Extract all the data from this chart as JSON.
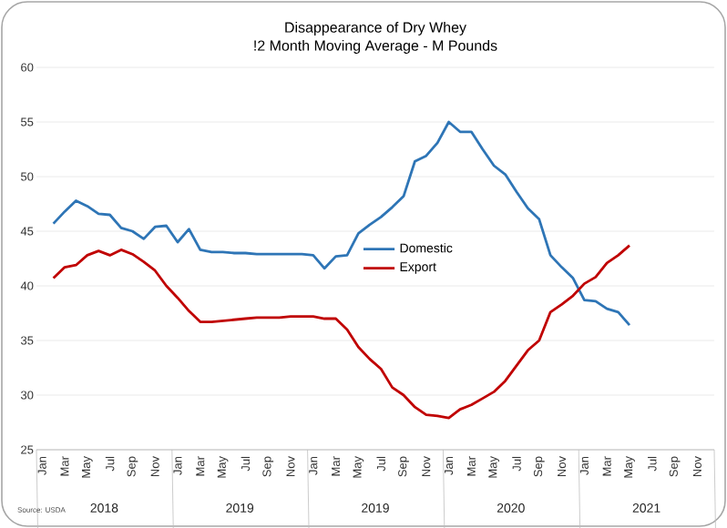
{
  "chart_data": {
    "type": "line",
    "title": "Disappearance of Dry Whey",
    "subtitle": "!2 Month Moving Average - M Pounds",
    "categories": [
      "Jan",
      null,
      "Mar",
      null,
      "May",
      null,
      "Jul",
      null,
      "Sep",
      null,
      "Nov",
      null,
      "Jan",
      null,
      "Mar",
      null,
      "May",
      null,
      "Jul",
      null,
      "Sep",
      null,
      "Nov",
      null,
      "Jan",
      null,
      "Mar",
      null,
      "May",
      null,
      "Jul",
      null,
      "Sep",
      null,
      "Nov",
      null,
      "Jan",
      null,
      "Mar",
      null,
      "May",
      null,
      "Jul",
      null,
      "Sep",
      null,
      "Nov",
      null,
      "Jan",
      null,
      "Mar",
      null,
      "May",
      null,
      "Jul",
      null,
      "Sep",
      null,
      "Nov",
      null
    ],
    "series": [
      {
        "name": "Domestic",
        "color": "#2e75b6",
        "values": [
          null,
          45.7,
          46.8,
          47.8,
          47.3,
          46.6,
          46.5,
          45.3,
          45.0,
          44.3,
          45.4,
          45.5,
          44.0,
          45.2,
          43.3,
          43.1,
          43.1,
          43.0,
          43.0,
          42.9,
          42.9,
          42.9,
          42.9,
          42.9,
          42.8,
          41.6,
          42.7,
          42.8,
          44.8,
          45.6,
          46.3,
          47.2,
          48.2,
          51.4,
          51.9,
          53.1,
          55.0,
          54.1,
          54.1,
          52.5,
          51.0,
          50.2,
          48.6,
          47.1,
          46.1,
          42.8,
          41.7,
          40.7,
          38.7,
          38.6,
          37.9,
          37.6,
          36.4,
          null,
          null,
          null,
          null,
          null,
          null,
          null
        ]
      },
      {
        "name": "Export",
        "color": "#c00000",
        "values": [
          null,
          40.7,
          41.7,
          41.9,
          42.8,
          43.2,
          42.8,
          43.3,
          42.9,
          42.2,
          41.4,
          40.0,
          38.9,
          37.7,
          36.7,
          36.7,
          36.8,
          36.9,
          37.0,
          37.1,
          37.1,
          37.1,
          37.2,
          37.2,
          37.2,
          37.0,
          37.0,
          36.0,
          34.4,
          33.3,
          32.4,
          30.7,
          30.0,
          28.9,
          28.2,
          28.1,
          27.9,
          28.7,
          29.1,
          29.7,
          30.3,
          31.3,
          32.7,
          34.1,
          35.0,
          37.6,
          38.3,
          39.1,
          40.2,
          40.8,
          42.1,
          42.8,
          43.7,
          null,
          null,
          null,
          null,
          null,
          null,
          null
        ]
      }
    ],
    "ylim": [
      25,
      60
    ],
    "yticks": [
      25,
      30,
      35,
      40,
      45,
      50,
      55,
      60
    ],
    "grid": "y",
    "legend": "center",
    "marker": "none",
    "line_style": "solid",
    "annotations": [
      "2018",
      "2019",
      "2019",
      "2020",
      "2021",
      "Source: USDA"
    ]
  }
}
